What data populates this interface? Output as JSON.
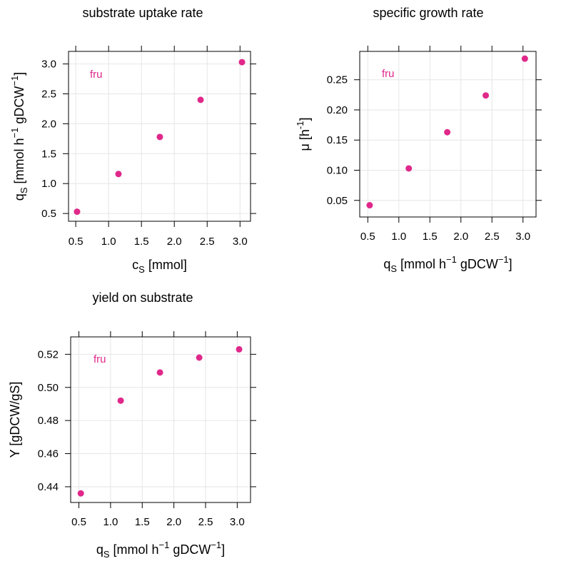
{
  "colors": {
    "point": "#e0288a",
    "grid": "#e6e6e6",
    "axis": "#000000"
  },
  "chart_data": [
    {
      "type": "scatter",
      "title": "substrate uptake rate",
      "xlabel": {
        "base": "c",
        "sub": "S",
        "rest": " [mmol]"
      },
      "ylabel": {
        "base": "q",
        "sub": "S",
        "rest": " [mmol h",
        "sup1": "−1",
        "mid": " gDCW",
        "sup2": "−1",
        "end": "]"
      },
      "series_label": "fru",
      "x": [
        0.52,
        1.15,
        1.78,
        2.4,
        3.03
      ],
      "y": [
        0.53,
        1.16,
        1.78,
        2.4,
        3.03
      ],
      "xlim": [
        0.39,
        3.16
      ],
      "ylim": [
        0.37,
        3.21
      ],
      "xticks": [
        "0.5",
        "1.0",
        "1.5",
        "2.0",
        "2.5",
        "3.0"
      ],
      "xtick_values": [
        0.5,
        1.0,
        1.5,
        2.0,
        2.5,
        3.0
      ],
      "yticks": [
        "0.5",
        "1.0",
        "1.5",
        "2.0",
        "2.5",
        "3.0"
      ],
      "ytick_values": [
        0.5,
        1.0,
        1.5,
        2.0,
        2.5,
        3.0
      ],
      "grid": true,
      "legend": "top-left"
    },
    {
      "type": "scatter",
      "title": "specific growth rate",
      "xlabel": {
        "base": "q",
        "sub": "S",
        "rest": " [mmol h",
        "sup1": "−1",
        "mid": " gDCW",
        "sup2": "−1",
        "end": "]"
      },
      "ylabel": {
        "base": "μ",
        "rest": " [h",
        "sup1": "-1",
        "end": "]"
      },
      "series_label": "fru",
      "x": [
        0.53,
        1.16,
        1.78,
        2.4,
        3.03
      ],
      "y": [
        0.042,
        0.103,
        0.163,
        0.224,
        0.285
      ],
      "xlim": [
        0.37,
        3.21
      ],
      "ylim": [
        0.0225,
        0.297
      ],
      "xticks": [
        "0.5",
        "1.0",
        "1.5",
        "2.0",
        "2.5",
        "3.0"
      ],
      "xtick_values": [
        0.5,
        1.0,
        1.5,
        2.0,
        2.5,
        3.0
      ],
      "yticks": [
        "0.05",
        "0.10",
        "0.15",
        "0.20",
        "0.25"
      ],
      "ytick_values": [
        0.05,
        0.1,
        0.15,
        0.2,
        0.25
      ],
      "grid": true,
      "legend": "top-left"
    },
    {
      "type": "scatter",
      "title": "yield on substrate",
      "xlabel": {
        "base": "q",
        "sub": "S",
        "rest": " [mmol h",
        "sup1": "−1",
        "mid": " gDCW",
        "sup2": "−1",
        "end": "]"
      },
      "ylabel": {
        "base": "Y [gDCW/gS]"
      },
      "series_label": "fru",
      "x": [
        0.53,
        1.16,
        1.78,
        2.4,
        3.03
      ],
      "y": [
        0.436,
        0.492,
        0.509,
        0.518,
        0.523
      ],
      "xlim": [
        0.37,
        3.21
      ],
      "ylim": [
        0.4305,
        0.5305
      ],
      "xticks": [
        "0.5",
        "1.0",
        "1.5",
        "2.0",
        "2.5",
        "3.0"
      ],
      "xtick_values": [
        0.5,
        1.0,
        1.5,
        2.0,
        2.5,
        3.0
      ],
      "yticks": [
        "0.44",
        "0.46",
        "0.48",
        "0.50",
        "0.52"
      ],
      "ytick_values": [
        0.44,
        0.46,
        0.48,
        0.5,
        0.52
      ],
      "grid": true,
      "legend": "top-left"
    }
  ]
}
